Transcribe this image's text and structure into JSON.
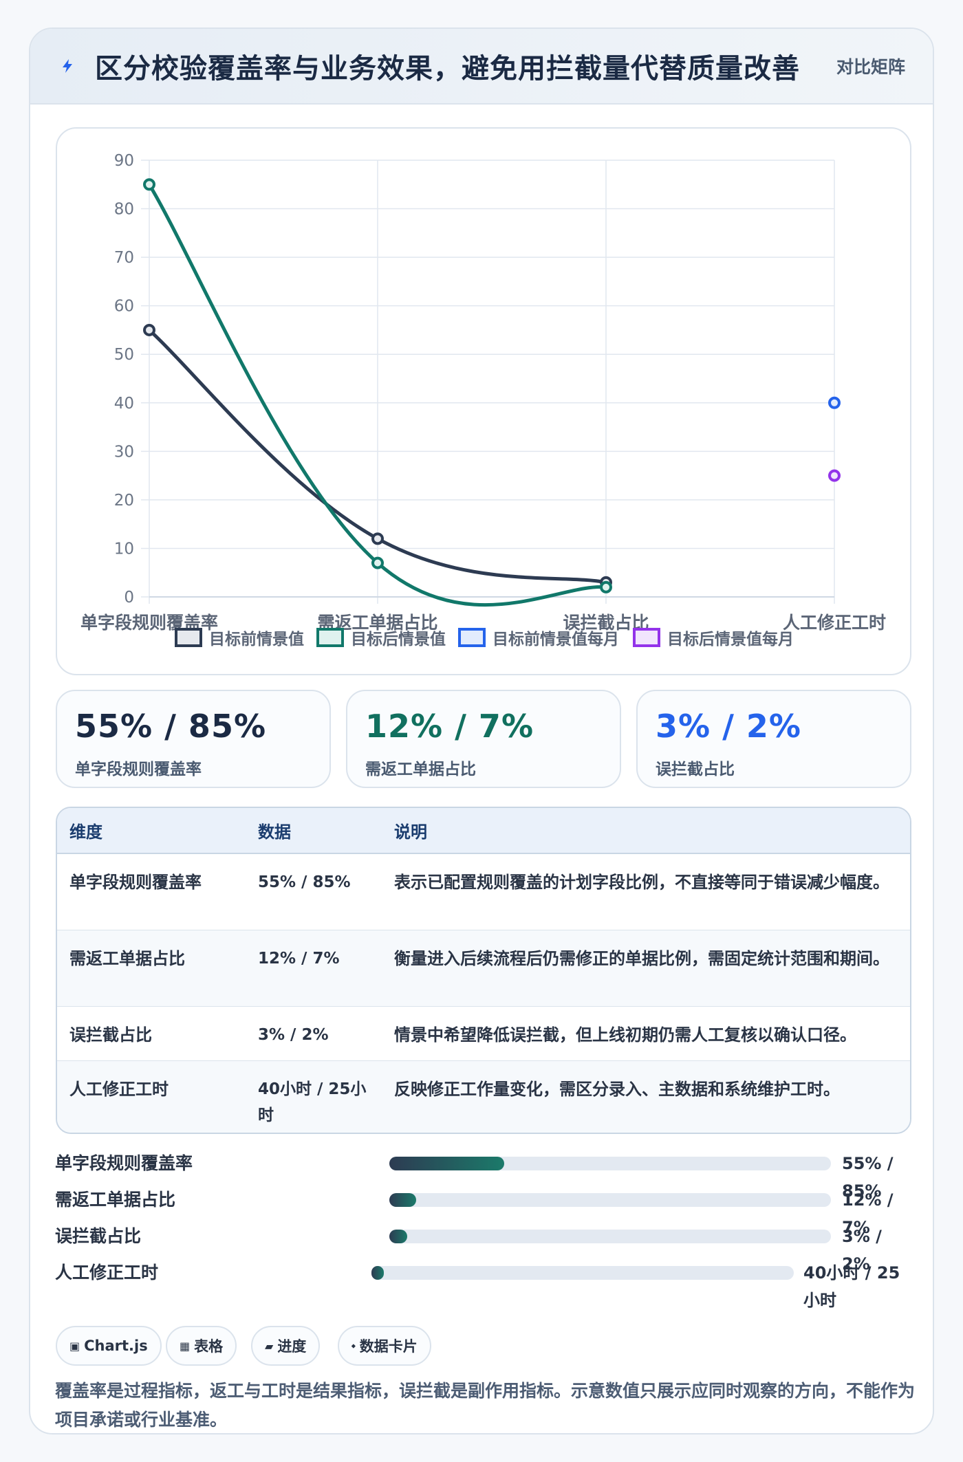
{
  "header": {
    "title": "区分校验覆盖率与业务效果，避免用拦截量代替质量改善",
    "badge": "对比矩阵",
    "icon": "bolt-icon",
    "icon_color": "#2563eb"
  },
  "chart_data": {
    "type": "line",
    "categories": [
      "单字段规则覆盖率",
      "需返工单据占比",
      "误拦截占比",
      "人工修正工时"
    ],
    "ylim": [
      0,
      90
    ],
    "yticks": [
      0,
      10,
      20,
      30,
      40,
      50,
      60,
      70,
      80,
      90
    ],
    "grid": true,
    "legend_position": "bottom",
    "series": [
      {
        "name": "目标前情景值",
        "values": [
          55,
          12,
          3,
          null
        ],
        "color": "#2d3b52",
        "fill": "#e6e9ee"
      },
      {
        "name": "目标后情景值",
        "values": [
          85,
          7,
          2,
          null
        ],
        "color": "#11786a",
        "fill": "#e0f2ef"
      },
      {
        "name": "目标前情景值每月",
        "values": [
          null,
          null,
          null,
          40
        ],
        "color": "#2563eb",
        "fill": "#e3ecfd"
      },
      {
        "name": "目标后情景值每月",
        "values": [
          null,
          null,
          null,
          25
        ],
        "color": "#9333ea",
        "fill": "#f1e5fd"
      }
    ]
  },
  "kpis": [
    {
      "value": "55% / 85%",
      "label": "单字段规则覆盖率",
      "color": "#1b2a44"
    },
    {
      "value": "12% / 7%",
      "label": "需返工单据占比",
      "color": "#11705f"
    },
    {
      "value": "3% / 2%",
      "label": "误拦截占比",
      "color": "#2563eb"
    }
  ],
  "table": {
    "headers": [
      "维度",
      "数据",
      "说明"
    ],
    "rows": [
      [
        "单字段规则覆盖率",
        "55% / 85%",
        "表示已配置规则覆盖的计划字段比例，不直接等同于错误减少幅度。"
      ],
      [
        "需返工单据占比",
        "12% / 7%",
        "衡量进入后续流程后仍需修正的单据比例，需固定统计范围和期间。"
      ],
      [
        "误拦截占比",
        "3% / 2%",
        "情景中希望降低误拦截，但上线初期仍需人工复核以确认口径。"
      ],
      [
        "人工修正工时",
        "40小时 / 25小时",
        "反映修正工作量变化，需区分录入、主数据和系统维护工时。"
      ]
    ]
  },
  "progress": [
    {
      "label": "单字段规则覆盖率",
      "value": "55% / 85%",
      "fraction": 0.26
    },
    {
      "label": "需返工单据占比",
      "value": "12% / 7%",
      "fraction": 0.06
    },
    {
      "label": "误拦截占比",
      "value": "3% / 2%",
      "fraction": 0.04
    },
    {
      "label": "人工修正工时",
      "value": "40小时 / 25小时",
      "fraction": 0.03
    }
  ],
  "chips": [
    {
      "icon": "▣",
      "label": "Chart.js"
    },
    {
      "icon": "▦",
      "label": "表格"
    },
    {
      "icon": "▰",
      "label": "进度"
    },
    {
      "icon": "⬩",
      "label": "数据卡片"
    }
  ],
  "note": "覆盖率是过程指标，返工与工时是结果指标，误拦截是副作用指标。示意数值只展示应同时观察的方向，不能作为项目承诺或行业基准。"
}
